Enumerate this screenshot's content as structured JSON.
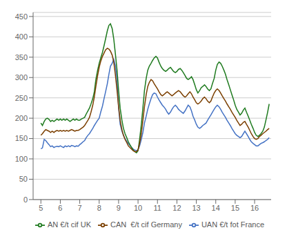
{
  "chart_data": {
    "type": "line",
    "x": [
      5.0,
      5.08,
      5.17,
      5.25,
      5.33,
      5.42,
      5.5,
      5.58,
      5.67,
      5.75,
      5.83,
      5.92,
      6.0,
      6.08,
      6.17,
      6.25,
      6.33,
      6.42,
      6.5,
      6.58,
      6.67,
      6.75,
      6.83,
      6.92,
      7.0,
      7.08,
      7.17,
      7.25,
      7.33,
      7.42,
      7.5,
      7.58,
      7.67,
      7.75,
      7.83,
      7.92,
      8.0,
      8.08,
      8.17,
      8.25,
      8.33,
      8.42,
      8.5,
      8.58,
      8.67,
      8.75,
      8.83,
      8.92,
      9.0,
      9.08,
      9.17,
      9.25,
      9.33,
      9.42,
      9.5,
      9.58,
      9.67,
      9.75,
      9.83,
      9.92,
      10.0,
      10.08,
      10.17,
      10.25,
      10.33,
      10.42,
      10.5,
      10.58,
      10.67,
      10.75,
      10.83,
      10.92,
      11.0,
      11.08,
      11.17,
      11.25,
      11.33,
      11.42,
      11.5,
      11.58,
      11.67,
      11.75,
      11.83,
      11.92,
      12.0,
      12.08,
      12.17,
      12.25,
      12.33,
      12.42,
      12.5,
      12.58,
      12.67,
      12.75,
      12.83,
      12.92,
      13.0,
      13.08,
      13.17,
      13.25,
      13.33,
      13.42,
      13.5,
      13.58,
      13.67,
      13.75,
      13.83,
      13.92,
      14.0,
      14.08,
      14.17,
      14.25,
      14.33,
      14.42,
      14.5,
      14.58,
      14.67,
      14.75,
      14.83,
      14.92,
      15.0,
      15.08,
      15.17,
      15.25,
      15.33,
      15.42,
      15.5,
      15.58,
      15.67,
      15.75,
      15.83,
      15.92,
      16.0,
      16.08,
      16.17,
      16.25,
      16.33,
      16.42,
      16.5,
      16.58,
      16.67,
      16.75
    ],
    "series": [
      {
        "name": "UAN €/t fot France",
        "color": "#4472C4",
        "values": [
          125,
          127,
          148,
          145,
          140,
          135,
          130,
          132,
          128,
          130,
          131,
          130,
          132,
          130,
          128,
          132,
          130,
          132,
          130,
          133,
          132,
          130,
          132,
          131,
          135,
          138,
          142,
          145,
          152,
          158,
          162,
          168,
          175,
          182,
          188,
          195,
          200,
          215,
          230,
          248,
          265,
          285,
          308,
          328,
          335,
          345,
          330,
          295,
          225,
          185,
          168,
          158,
          150,
          143,
          138,
          133,
          128,
          124,
          122,
          120,
          123,
          132,
          148,
          165,
          188,
          205,
          222,
          235,
          248,
          258,
          262,
          260,
          252,
          245,
          238,
          232,
          228,
          222,
          215,
          210,
          215,
          222,
          228,
          232,
          228,
          222,
          218,
          215,
          212,
          218,
          225,
          232,
          228,
          218,
          205,
          195,
          185,
          178,
          175,
          178,
          182,
          185,
          188,
          195,
          202,
          208,
          215,
          222,
          228,
          232,
          228,
          222,
          215,
          208,
          202,
          195,
          188,
          182,
          175,
          168,
          162,
          158,
          155,
          152,
          155,
          162,
          168,
          162,
          155,
          148,
          142,
          138,
          135,
          132,
          132,
          135,
          138,
          140,
          142,
          145,
          148,
          152
        ]
      },
      {
        "name": "AN €/t cif UK",
        "color": "#1E7A1E",
        "values": [
          188,
          182,
          192,
          198,
          200,
          197,
          192,
          195,
          192,
          195,
          198,
          195,
          198,
          195,
          198,
          195,
          198,
          195,
          192,
          195,
          198,
          195,
          198,
          195,
          195,
          198,
          200,
          202,
          210,
          218,
          225,
          235,
          248,
          265,
          295,
          318,
          335,
          348,
          362,
          378,
          395,
          415,
          428,
          432,
          420,
          395,
          360,
          318,
          268,
          225,
          195,
          175,
          162,
          152,
          142,
          135,
          128,
          122,
          118,
          115,
          120,
          148,
          185,
          225,
          268,
          298,
          318,
          328,
          335,
          342,
          348,
          352,
          348,
          338,
          328,
          322,
          318,
          315,
          318,
          322,
          325,
          320,
          315,
          312,
          315,
          320,
          322,
          318,
          312,
          305,
          298,
          295,
          298,
          302,
          295,
          282,
          270,
          262,
          268,
          275,
          278,
          282,
          278,
          272,
          268,
          272,
          285,
          298,
          318,
          332,
          338,
          335,
          328,
          318,
          308,
          295,
          282,
          270,
          258,
          245,
          232,
          222,
          215,
          208,
          212,
          220,
          225,
          215,
          205,
          195,
          185,
          175,
          165,
          158,
          155,
          158,
          162,
          168,
          178,
          195,
          215,
          235
        ]
      },
      {
        "name": "CAN  €/t cif Germany",
        "color": "#7B3F00",
        "values": [
          158,
          162,
          168,
          172,
          170,
          168,
          165,
          168,
          165,
          168,
          170,
          168,
          170,
          168,
          170,
          168,
          170,
          168,
          170,
          172,
          170,
          168,
          170,
          170,
          172,
          175,
          178,
          182,
          188,
          195,
          202,
          215,
          232,
          252,
          278,
          305,
          325,
          340,
          352,
          360,
          368,
          372,
          370,
          365,
          355,
          338,
          308,
          268,
          228,
          195,
          172,
          158,
          148,
          140,
          132,
          128,
          124,
          120,
          118,
          118,
          122,
          138,
          162,
          195,
          228,
          258,
          278,
          288,
          295,
          292,
          285,
          278,
          272,
          265,
          258,
          255,
          258,
          262,
          265,
          262,
          258,
          255,
          258,
          262,
          265,
          268,
          265,
          260,
          255,
          252,
          255,
          260,
          265,
          260,
          252,
          245,
          238,
          235,
          238,
          242,
          248,
          252,
          248,
          242,
          238,
          242,
          252,
          262,
          268,
          272,
          268,
          262,
          255,
          248,
          242,
          235,
          228,
          222,
          215,
          208,
          202,
          195,
          188,
          182,
          185,
          190,
          192,
          185,
          178,
          170,
          162,
          155,
          150,
          148,
          150,
          155,
          158,
          162,
          165,
          168,
          172,
          175
        ]
      }
    ],
    "xlim": [
      4.6,
      16.85
    ],
    "xticks": [
      5,
      6,
      7,
      8,
      9,
      10,
      11,
      12,
      13,
      14,
      15,
      16
    ],
    "ylim": [
      0,
      460
    ],
    "yticks": [
      0,
      50,
      100,
      150,
      200,
      250,
      300,
      350,
      400,
      450
    ],
    "grid": true,
    "legend": "lower right"
  }
}
